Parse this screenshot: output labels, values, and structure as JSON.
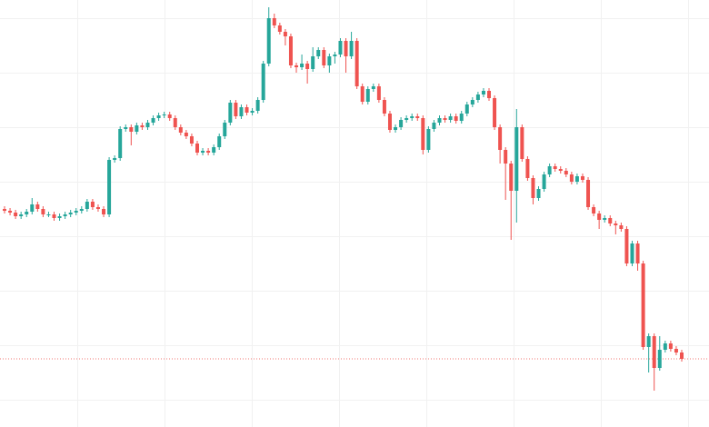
{
  "chart_data": {
    "type": "candlestick",
    "up_color": "#26a69a",
    "down_color": "#ef5350",
    "last_line_color": "#ef5350",
    "ylim": [
      0,
      470
    ],
    "open": [
      240,
      238,
      236,
      232,
      234,
      237,
      245,
      240,
      234,
      234,
      230,
      232,
      234,
      236,
      238,
      240,
      248,
      242,
      240,
      234,
      294,
      296,
      328,
      330,
      325,
      332,
      330,
      335,
      340,
      343,
      344,
      340,
      330,
      324,
      320,
      312,
      302,
      304,
      302,
      308,
      320,
      335,
      357,
      342,
      352,
      346,
      348,
      360,
      400,
      450,
      442,
      435,
      430,
      398,
      396,
      400,
      394,
      408,
      415,
      398,
      408,
      410,
      425,
      408,
      425,
      375,
      358,
      372,
      375,
      360,
      345,
      327,
      330,
      338,
      340,
      342,
      340,
      305,
      328,
      335,
      340,
      338,
      342,
      337,
      345,
      355,
      360,
      366,
      370,
      362,
      330,
      305,
      290,
      260,
      330,
      295,
      274,
      252,
      262,
      278,
      287,
      284,
      282,
      278,
      270,
      276,
      272,
      242,
      235,
      228,
      230,
      224,
      222,
      218,
      180,
      202,
      180,
      88,
      100,
      65,
      85,
      92,
      86,
      82
    ],
    "high": [
      243,
      241,
      239,
      237,
      240,
      252,
      248,
      243,
      237,
      237,
      235,
      237,
      239,
      241,
      243,
      251,
      251,
      245,
      243,
      297,
      299,
      331,
      333,
      333,
      335,
      335,
      338,
      343,
      346,
      347,
      347,
      343,
      333,
      327,
      323,
      315,
      307,
      307,
      311,
      323,
      338,
      360,
      360,
      355,
      355,
      351,
      363,
      403,
      462,
      455,
      445,
      438,
      433,
      401,
      410,
      403,
      418,
      418,
      418,
      411,
      413,
      428,
      428,
      435,
      428,
      378,
      375,
      378,
      378,
      363,
      348,
      333,
      341,
      343,
      345,
      345,
      343,
      331,
      338,
      343,
      343,
      345,
      345,
      348,
      358,
      363,
      369,
      373,
      373,
      365,
      333,
      308,
      293,
      350,
      333,
      298,
      277,
      265,
      281,
      290,
      290,
      287,
      285,
      281,
      279,
      279,
      275,
      245,
      238,
      233,
      233,
      227,
      225,
      221,
      205,
      205,
      183,
      103,
      103,
      100,
      95,
      95,
      89,
      85
    ],
    "low": [
      235,
      233,
      229,
      229,
      231,
      234,
      237,
      231,
      231,
      227,
      227,
      229,
      231,
      233,
      235,
      237,
      239,
      237,
      231,
      231,
      291,
      293,
      325,
      310,
      322,
      327,
      327,
      332,
      337,
      340,
      337,
      327,
      321,
      317,
      309,
      299,
      299,
      299,
      299,
      305,
      317,
      332,
      339,
      339,
      343,
      343,
      345,
      357,
      397,
      439,
      432,
      420,
      395,
      390,
      393,
      378,
      391,
      405,
      395,
      390,
      400,
      407,
      390,
      405,
      372,
      355,
      355,
      369,
      357,
      342,
      324,
      324,
      327,
      335,
      337,
      337,
      300,
      302,
      325,
      332,
      335,
      335,
      334,
      334,
      342,
      352,
      357,
      363,
      359,
      327,
      290,
      250,
      206,
      225,
      292,
      271,
      245,
      249,
      259,
      275,
      281,
      279,
      275,
      267,
      267,
      269,
      239,
      232,
      218,
      225,
      221,
      212,
      215,
      177,
      177,
      172,
      85,
      60,
      40,
      62,
      82,
      83,
      79,
      72
    ],
    "close": [
      238,
      236,
      232,
      234,
      237,
      245,
      240,
      234,
      234,
      230,
      232,
      234,
      236,
      238,
      240,
      248,
      242,
      240,
      234,
      294,
      296,
      328,
      330,
      325,
      332,
      330,
      335,
      340,
      343,
      344,
      340,
      330,
      324,
      320,
      312,
      302,
      304,
      302,
      308,
      320,
      335,
      357,
      342,
      352,
      346,
      348,
      360,
      400,
      450,
      442,
      435,
      430,
      398,
      396,
      400,
      394,
      408,
      415,
      398,
      408,
      410,
      425,
      408,
      425,
      375,
      358,
      372,
      375,
      360,
      345,
      327,
      330,
      338,
      340,
      342,
      340,
      305,
      328,
      335,
      340,
      338,
      342,
      337,
      345,
      355,
      360,
      366,
      370,
      362,
      330,
      305,
      290,
      260,
      330,
      295,
      274,
      252,
      262,
      278,
      287,
      284,
      282,
      278,
      270,
      276,
      272,
      242,
      235,
      228,
      230,
      224,
      222,
      218,
      180,
      202,
      180,
      88,
      100,
      65,
      85,
      92,
      86,
      82,
      75
    ]
  }
}
